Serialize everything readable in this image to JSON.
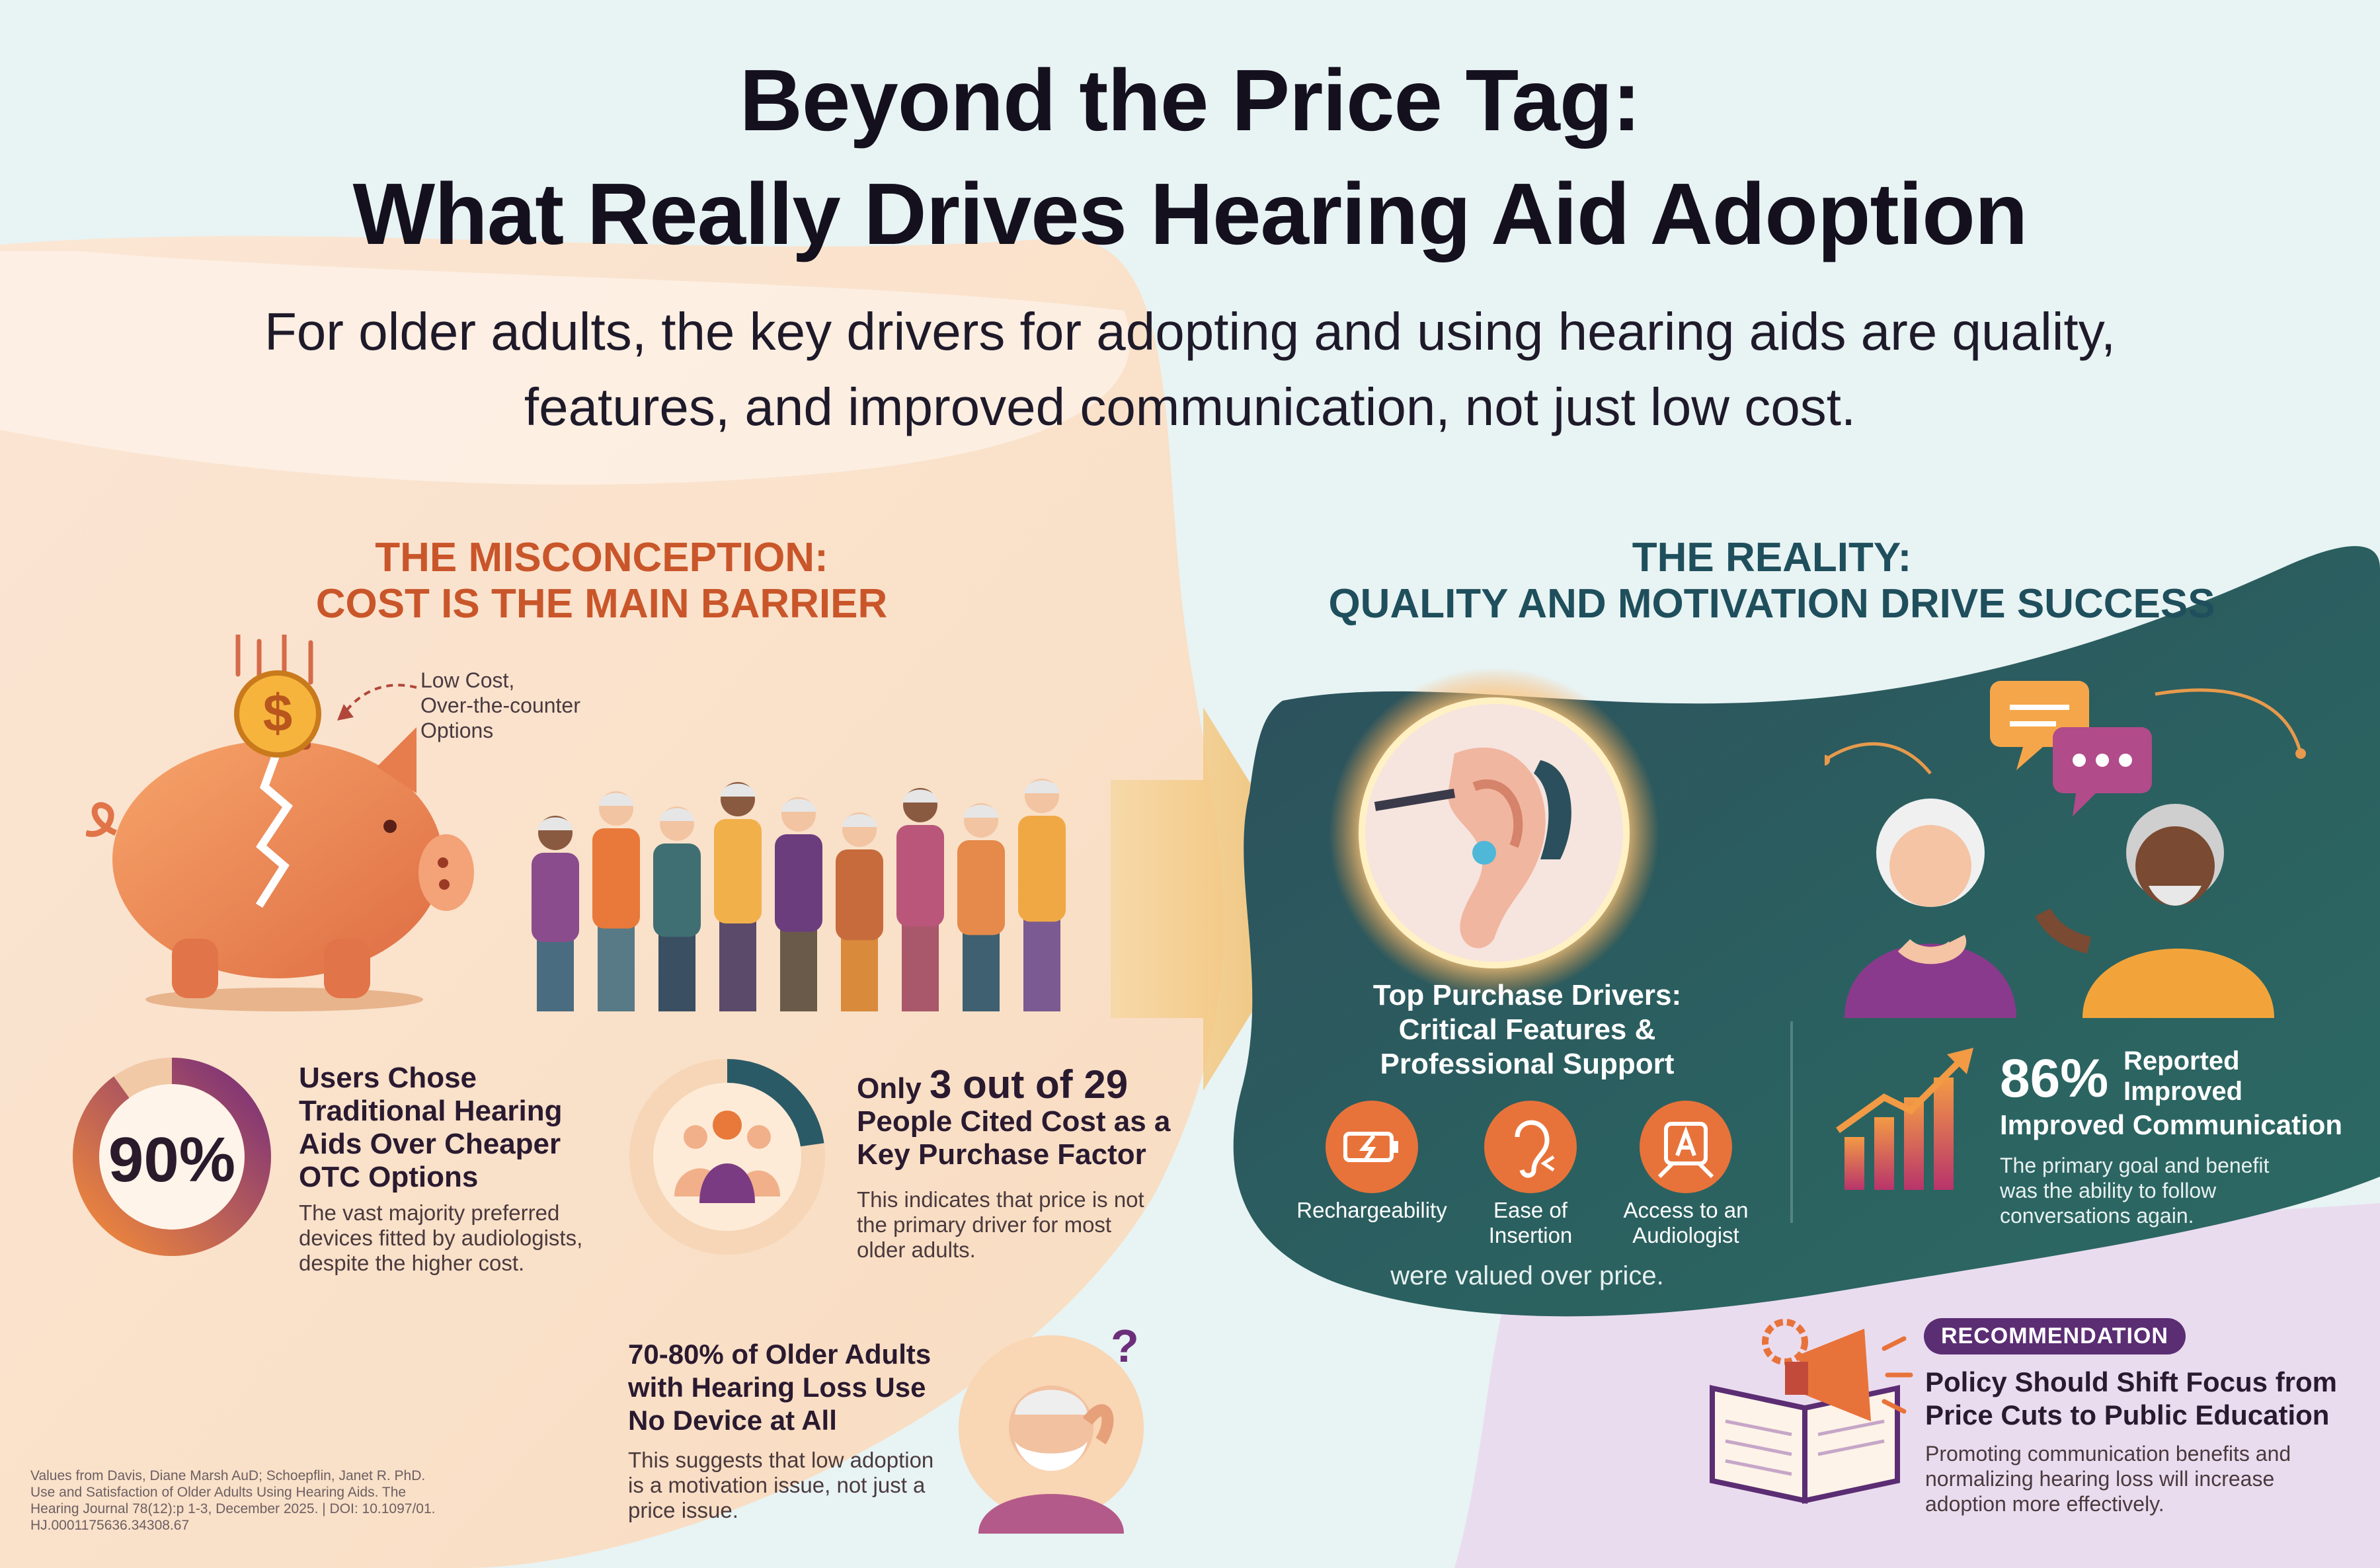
{
  "header": {
    "title_line1": "Beyond the Price Tag:",
    "title_line2": "What Really Drives Hearing Aid Adoption",
    "subtitle_line1": "For older adults, the key drivers for adopting and using hearing aids are quality,",
    "subtitle_line2": "features, and improved communication, not just low cost."
  },
  "misconception": {
    "heading_line1": "THE MISCONCEPTION:",
    "heading_line2": "COST IS THE MAIN BARRIER",
    "coin_symbol": "$",
    "annotation_line1": "Low Cost,",
    "annotation_line2": "Over-the-counter",
    "annotation_line3": "Options",
    "stat1": {
      "value": "90%",
      "progress": 0.9,
      "head_line1": "Users Chose",
      "head_line2": "Traditional Hearing",
      "head_line3": "Aids Over Cheaper",
      "head_line4": "OTC Options",
      "desc_line1": "The vast majority preferred",
      "desc_line2": "devices fitted by audiologists,",
      "desc_line3": "despite the higher cost."
    },
    "stat2": {
      "prefix": "Only ",
      "value": "3 out of 29",
      "fraction": 0.1034,
      "head_line2": "People Cited Cost as a",
      "head_line3": "Key Purchase Factor",
      "desc_line1": "This indicates that price is not",
      "desc_line2": "the primary driver for most",
      "desc_line3": "older adults."
    },
    "stat3": {
      "head_line1": "70-80% of Older Adults",
      "head_line2": "with Hearing Loss Use",
      "head_line3": "No Device at All",
      "desc_line1": "This suggests that low adoption",
      "desc_line2": "is a motivation issue, not just a",
      "desc_line3": "price issue.",
      "question_mark": "?"
    },
    "source_line1": "Values from Davis, Diane Marsh AuD; Schoepflin, Janet R. PhD.",
    "source_line2": "Use and Satisfaction of Older Adults Using Hearing Aids. The",
    "source_line3": "Hearing Journal 78(12):p 1-3, December 2025. | DOI: 10.1097/01.",
    "source_line4": "HJ.0001175636.34308.67"
  },
  "reality": {
    "heading_line1": "THE REALITY:",
    "heading_line2": "QUALITY AND MOTIVATION DRIVE SUCCESS",
    "drivers_title_line1": "Top Purchase Drivers:",
    "drivers_title_line2": "Critical Features &",
    "drivers_title_line3": "Professional Support",
    "icons": [
      {
        "label_line1": "Rechargeability",
        "label_line2": "",
        "icon": "battery-charging-icon"
      },
      {
        "label_line1": "Ease of",
        "label_line2": "Insertion",
        "icon": "ear-icon"
      },
      {
        "label_line1": "Access to an",
        "label_line2": "Audiologist",
        "icon": "audiologist-icon"
      }
    ],
    "drivers_footer": "were valued over price.",
    "stat": {
      "value": "86%",
      "label_line1": "Reported",
      "label_line2": "Improved",
      "head": "Improved Communication",
      "desc_line1": "The primary goal and benefit",
      "desc_line2": "was the ability to follow",
      "desc_line3": "conversations again."
    }
  },
  "recommendation": {
    "badge": "RECOMMENDATION",
    "head_line1": "Policy Should Shift Focus from",
    "head_line2": "Price Cuts to Public Education",
    "desc_line1": "Promoting communication benefits and",
    "desc_line2": "normalizing hearing loss will increase",
    "desc_line3": "adoption more effectively."
  },
  "colors": {
    "orange_heading": "#c9562a",
    "teal_heading": "#1f4f5c",
    "teal_panel": "#2a5a5e",
    "purple_accent": "#6b2f7a",
    "badge_purple": "#5b2d73"
  }
}
